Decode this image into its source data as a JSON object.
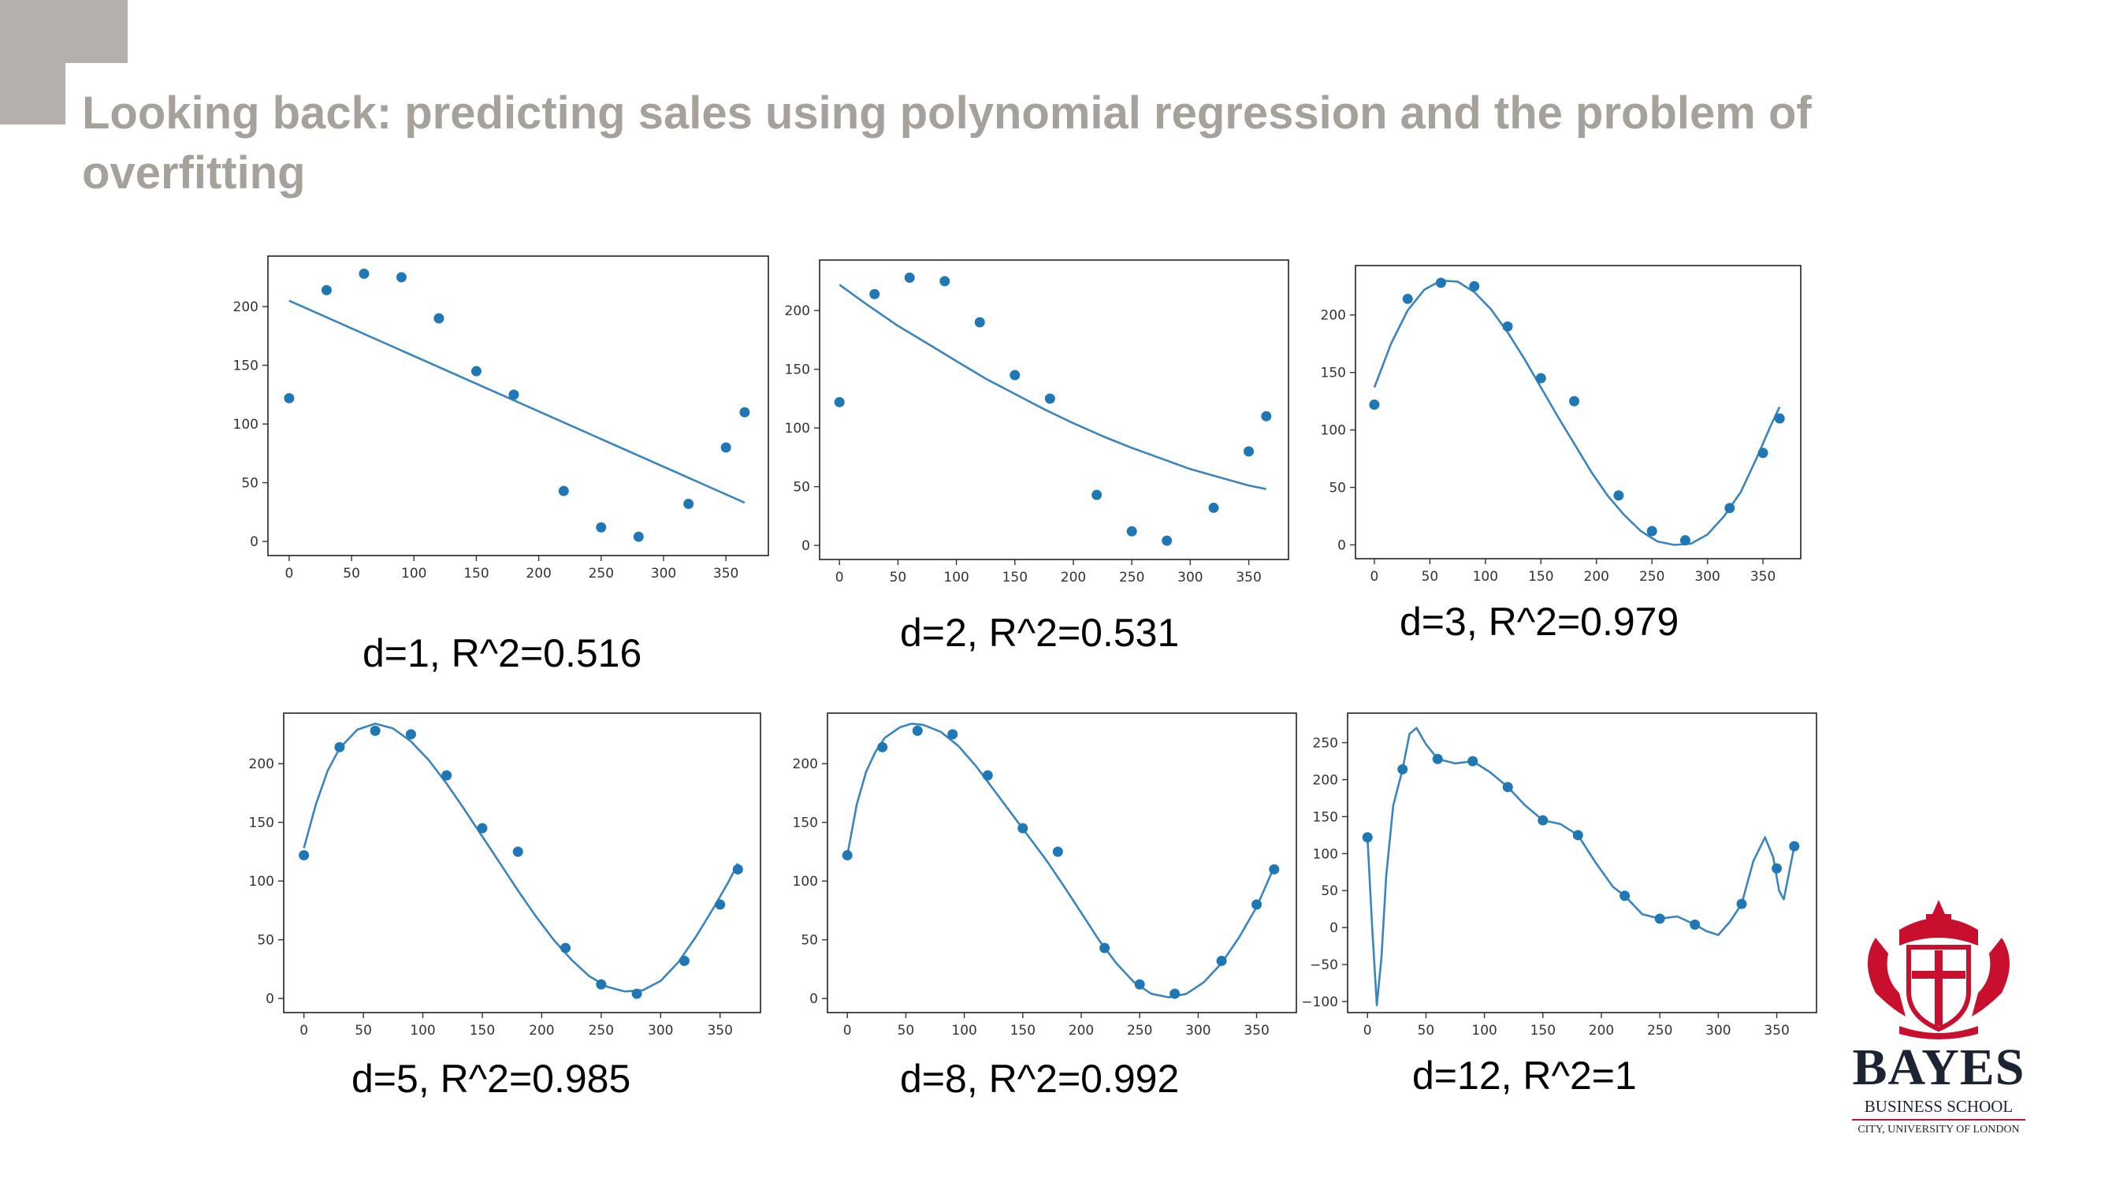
{
  "slide": {
    "title": "Looking back: predicting sales using polynomial regression and the problem of overfitting"
  },
  "colors": {
    "accent_block": "#b5b0ab",
    "title": "#a7a19c",
    "series": "#1f77b4",
    "fit_line": "#3a85bd",
    "logo_red": "#c8102e",
    "logo_navy": "#1c2333"
  },
  "logo": {
    "icon": "coat-of-arms-icon",
    "wordmark": "BAYES",
    "line1": "BUSINESS SCHOOL",
    "line2": "CITY, UNIVERSITY OF LONDON"
  },
  "chart_data": [
    {
      "type": "scatter",
      "caption": "d=1, R^2=0.516",
      "x": [
        0,
        30,
        60,
        90,
        120,
        150,
        180,
        220,
        250,
        280,
        320,
        350,
        365
      ],
      "y": [
        122,
        214,
        228,
        225,
        190,
        145,
        125,
        43,
        12,
        4,
        32,
        80,
        110
      ],
      "fit_x": [
        0,
        365
      ],
      "fit_y": [
        205,
        33
      ],
      "xlim": [
        -17,
        384
      ],
      "ylim": [
        -12,
        243
      ],
      "xticks": [
        0,
        50,
        100,
        150,
        200,
        250,
        300,
        350
      ],
      "yticks": [
        0,
        50,
        100,
        150,
        200
      ]
    },
    {
      "type": "scatter",
      "caption": "d=2, R^2=0.531",
      "x": [
        0,
        30,
        60,
        90,
        120,
        150,
        180,
        220,
        250,
        280,
        320,
        350,
        365
      ],
      "y": [
        122,
        214,
        228,
        225,
        190,
        145,
        125,
        43,
        12,
        4,
        32,
        80,
        110
      ],
      "fit_x": [
        0,
        25,
        50,
        75,
        100,
        125,
        150,
        175,
        200,
        225,
        250,
        275,
        300,
        325,
        350,
        365
      ],
      "fit_y": [
        222,
        204,
        187,
        172,
        157,
        142,
        129,
        116,
        104,
        93,
        83,
        74,
        65,
        58,
        51,
        48
      ],
      "xlim": [
        -17,
        384
      ],
      "ylim": [
        -12,
        243
      ],
      "xticks": [
        0,
        50,
        100,
        150,
        200,
        250,
        300,
        350
      ],
      "yticks": [
        0,
        50,
        100,
        150,
        200
      ]
    },
    {
      "type": "scatter",
      "caption": "d=3, R^2=0.979",
      "x": [
        0,
        30,
        60,
        90,
        120,
        150,
        180,
        220,
        250,
        280,
        320,
        350,
        365
      ],
      "y": [
        122,
        214,
        228,
        225,
        190,
        145,
        125,
        43,
        12,
        4,
        32,
        80,
        110
      ],
      "fit_x": [
        0,
        15,
        30,
        45,
        60,
        75,
        90,
        105,
        120,
        135,
        150,
        165,
        180,
        195,
        210,
        225,
        240,
        255,
        270,
        285,
        300,
        315,
        330,
        345,
        358,
        365
      ],
      "fit_y": [
        137,
        175,
        204,
        222,
        230,
        229,
        220,
        205,
        185,
        162,
        137,
        112,
        88,
        64,
        43,
        26,
        12,
        3,
        0,
        1,
        9,
        25,
        46,
        77,
        106,
        120
      ],
      "xlim": [
        -17,
        384
      ],
      "ylim": [
        -12,
        243
      ],
      "xticks": [
        0,
        50,
        100,
        150,
        200,
        250,
        300,
        350
      ],
      "yticks": [
        0,
        50,
        100,
        150,
        200
      ]
    },
    {
      "type": "scatter",
      "caption": "d=5, R^2=0.985",
      "x": [
        0,
        30,
        60,
        90,
        120,
        150,
        180,
        220,
        250,
        280,
        320,
        350,
        365
      ],
      "y": [
        122,
        214,
        228,
        225,
        190,
        145,
        125,
        43,
        12,
        4,
        32,
        80,
        110
      ],
      "fit_x": [
        0,
        10,
        20,
        30,
        45,
        60,
        75,
        90,
        105,
        120,
        135,
        150,
        165,
        180,
        195,
        210,
        225,
        240,
        255,
        270,
        285,
        300,
        315,
        330,
        345,
        358,
        365
      ],
      "fit_y": [
        128,
        165,
        194,
        213,
        229,
        234,
        230,
        219,
        203,
        183,
        161,
        138,
        115,
        92,
        70,
        50,
        33,
        19,
        10,
        6,
        7,
        15,
        31,
        53,
        78,
        101,
        115
      ],
      "xlim": [
        -17,
        384
      ],
      "ylim": [
        -12,
        243
      ],
      "xticks": [
        0,
        50,
        100,
        150,
        200,
        250,
        300,
        350
      ],
      "yticks": [
        0,
        50,
        100,
        150,
        200
      ]
    },
    {
      "type": "scatter",
      "caption": "d=8, R^2=0.992",
      "x": [
        0,
        30,
        60,
        90,
        120,
        150,
        180,
        220,
        250,
        280,
        320,
        350,
        365
      ],
      "y": [
        122,
        214,
        228,
        225,
        190,
        145,
        125,
        43,
        12,
        4,
        32,
        80,
        110
      ],
      "fit_x": [
        0,
        8,
        16,
        24,
        32,
        45,
        55,
        65,
        80,
        95,
        110,
        125,
        140,
        155,
        170,
        185,
        200,
        215,
        230,
        245,
        260,
        275,
        290,
        305,
        320,
        335,
        350,
        365
      ],
      "fit_y": [
        122,
        165,
        193,
        210,
        222,
        231,
        234,
        233,
        227,
        215,
        198,
        178,
        158,
        138,
        118,
        96,
        73,
        50,
        30,
        14,
        4,
        1,
        4,
        14,
        30,
        52,
        78,
        112
      ],
      "xlim": [
        -17,
        384
      ],
      "ylim": [
        -12,
        243
      ],
      "xticks": [
        0,
        50,
        100,
        150,
        200,
        250,
        300,
        350
      ],
      "yticks": [
        0,
        50,
        100,
        150,
        200
      ]
    },
    {
      "type": "scatter",
      "caption": "d=12, R^2=1",
      "x": [
        0,
        30,
        60,
        90,
        120,
        150,
        180,
        220,
        250,
        280,
        320,
        350,
        365
      ],
      "y": [
        122,
        214,
        228,
        225,
        190,
        145,
        125,
        43,
        12,
        4,
        32,
        80,
        110
      ],
      "fit_x": [
        0,
        4,
        8,
        12,
        16,
        22,
        30,
        36,
        42,
        50,
        60,
        75,
        90,
        105,
        120,
        135,
        150,
        165,
        180,
        195,
        210,
        220,
        235,
        250,
        265,
        280,
        290,
        300,
        310,
        320,
        330,
        340,
        347,
        352,
        356,
        360,
        365
      ],
      "fit_y": [
        122,
        0,
        -105,
        -40,
        70,
        165,
        214,
        262,
        270,
        248,
        228,
        222,
        225,
        210,
        190,
        165,
        145,
        140,
        125,
        88,
        55,
        43,
        18,
        12,
        15,
        4,
        -5,
        -10,
        8,
        32,
        90,
        122,
        95,
        50,
        38,
        70,
        110
      ],
      "xlim": [
        -17,
        384
      ],
      "ylim": [
        -115,
        290
      ],
      "xticks": [
        0,
        50,
        100,
        150,
        200,
        250,
        300,
        350
      ],
      "yticks": [
        -100,
        -50,
        0,
        50,
        100,
        150,
        200,
        250
      ]
    }
  ]
}
